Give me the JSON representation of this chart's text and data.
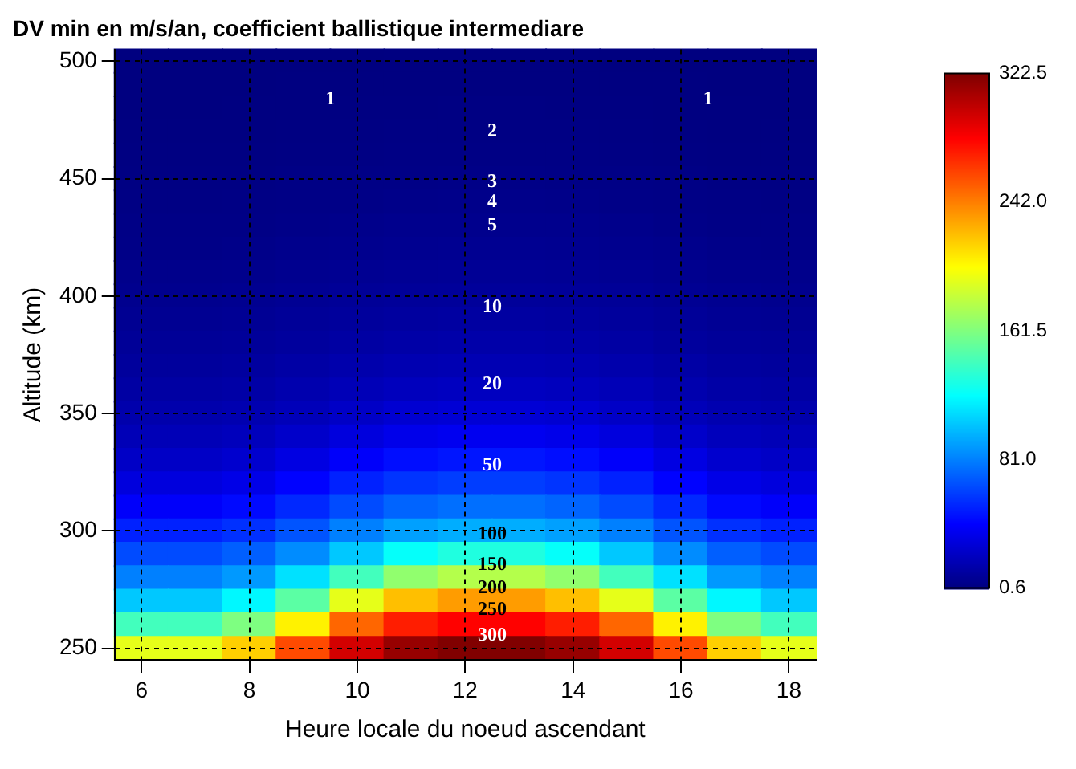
{
  "chart_data": {
    "type": "heatmap",
    "title": "DV min en m/s/an, coefficient ballistique intermediare",
    "xlabel": "Heure locale du noeud ascendant",
    "ylabel": "Altitude (km)",
    "categories": [
      "6",
      null,
      "8",
      null,
      "10",
      null,
      "12",
      null,
      "14",
      null,
      "16",
      null,
      "18"
    ],
    "y_categories": [
      "500",
      null,
      null,
      null,
      null,
      "450",
      null,
      null,
      null,
      null,
      "400",
      null,
      null,
      null,
      null,
      "350",
      null,
      null,
      null,
      null,
      "300",
      null,
      null,
      null,
      null,
      "250"
    ],
    "cells": [
      [
        0.72,
        0.72,
        0.76,
        0.82,
        0.9,
        0.95,
        0.97,
        0.97,
        0.95,
        0.9,
        0.82,
        0.76,
        0.72
      ],
      [
        0.81,
        0.81,
        0.84,
        0.92,
        1,
        1.14,
        1.2,
        1.2,
        1.14,
        1,
        0.92,
        0.84,
        0.81
      ],
      [
        0.9,
        0.9,
        0.94,
        1.05,
        1.29,
        1.47,
        1.55,
        1.55,
        1.47,
        1.29,
        1.05,
        0.94,
        0.9
      ],
      [
        1,
        1,
        1.11,
        1.36,
        1.67,
        1.9,
        2,
        2,
        1.9,
        1.67,
        1.36,
        1.11,
        1
      ],
      [
        1.29,
        1.29,
        1.43,
        1.76,
        2.11,
        2.3,
        2.39,
        2.39,
        2.3,
        2.11,
        1.76,
        1.43,
        1.29
      ],
      [
        1.67,
        1.67,
        1.85,
        2.19,
        2.52,
        2.75,
        2.84,
        2.84,
        2.75,
        2.52,
        2.19,
        1.85,
        1.67
      ],
      [
        2.11,
        2.11,
        2.26,
        2.61,
        3,
        3.71,
        4,
        4,
        3.71,
        3,
        2.61,
        2.26,
        2.11
      ],
      [
        2.52,
        2.52,
        2.7,
        3.29,
        4.3,
        4.8,
        5,
        5,
        4.8,
        4.3,
        3.29,
        2.7,
        2.52
      ],
      [
        3,
        3,
        3.57,
        4.5,
        5.31,
        5.86,
        6.1,
        6.1,
        5.86,
        5.31,
        4.5,
        3.57,
        3
      ],
      [
        4.3,
        4.3,
        4.7,
        5.52,
        6.47,
        7.14,
        7.43,
        7.43,
        7.14,
        6.47,
        5.52,
        4.7,
        4.3
      ],
      [
        5.31,
        5.31,
        5.74,
        6.73,
        7.88,
        8.71,
        9.06,
        9.06,
        8.71,
        7.88,
        6.73,
        5.74,
        5.31
      ],
      [
        6.47,
        6.47,
        7,
        8.2,
        9.61,
        10.6,
        11.1,
        11.1,
        10.6,
        9.61,
        8.2,
        7,
        6.47
      ],
      [
        7.88,
        7.88,
        8.54,
        10,
        11.8,
        13.1,
        13.7,
        13.7,
        13.1,
        11.8,
        10,
        8.54,
        7.88
      ],
      [
        9.61,
        9.61,
        10.4,
        12.3,
        14.6,
        16.2,
        16.9,
        16.9,
        16.2,
        14.6,
        12.3,
        10.4,
        9.61
      ],
      [
        11.8,
        11.8,
        12.9,
        15.2,
        18,
        20,
        21.1,
        21.1,
        20,
        18,
        15.2,
        12.9,
        11.8
      ],
      [
        14.6,
        14.6,
        15.9,
        18.8,
        22.9,
        26.2,
        27.6,
        27.6,
        26.2,
        22.9,
        18.8,
        15.9,
        14.6
      ],
      [
        18,
        18,
        19.6,
        24.2,
        30,
        34.3,
        36.2,
        36.2,
        34.3,
        30,
        24.2,
        19.6,
        18
      ],
      [
        22.9,
        22.9,
        25.5,
        31.6,
        39.2,
        44.9,
        47.4,
        47.4,
        44.9,
        39.2,
        31.6,
        25.5,
        22.9
      ],
      [
        30,
        30,
        33.4,
        41.4,
        51.2,
        57.4,
        60.1,
        60.1,
        57.4,
        51.2,
        41.4,
        33.4,
        30
      ],
      [
        39.2,
        39.2,
        43.7,
        53.6,
        64.5,
        72.4,
        75.8,
        75.8,
        72.4,
        64.5,
        53.6,
        43.7,
        39.2
      ],
      [
        51.2,
        51.2,
        56.1,
        67.5,
        81.2,
        91.2,
        95.5,
        95.5,
        91.2,
        81.2,
        67.5,
        56.1,
        51.2
      ],
      [
        64.5,
        64.5,
        70.7,
        85.1,
        104,
        123,
        131,
        131,
        123,
        104,
        85.1,
        70.7,
        64.5
      ],
      [
        81.2,
        81.2,
        89.1,
        112,
        142,
        167,
        178,
        178,
        167,
        142,
        112,
        89.1,
        81.2
      ],
      [
        104,
        104,
        119,
        150,
        194,
        222,
        233,
        233,
        222,
        194,
        150,
        119,
        104
      ],
      [
        142,
        142,
        161,
        206,
        250,
        273,
        282,
        282,
        273,
        250,
        206,
        161,
        142
      ],
      [
        194,
        194,
        217,
        259,
        296,
        315,
        322,
        322,
        315,
        296,
        259,
        217,
        194
      ]
    ],
    "clim": [
      0.6,
      322.5
    ],
    "cticks": [
      0.6,
      {
        "value": 81,
        "label": "81.0"
      },
      161.5,
      {
        "value": 242,
        "label": "242.0"
      },
      322.5
    ],
    "annotations": [
      "1",
      "1",
      "2",
      "3",
      "4",
      "5",
      "10",
      "20",
      "50",
      "100",
      "150",
      "200",
      "250",
      "300"
    ],
    "grid": true
  }
}
